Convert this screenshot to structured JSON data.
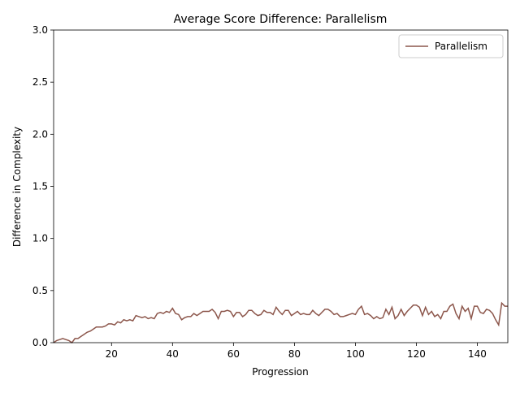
{
  "chart_data": {
    "type": "line",
    "title": "Average Score Difference: Parallelism",
    "x_label": "Progression",
    "y_label": "Difference in Complexity",
    "legend_position": "upper right",
    "x": [
      1,
      2,
      3,
      4,
      5,
      6,
      7,
      8,
      9,
      10,
      11,
      12,
      13,
      14,
      15,
      16,
      17,
      18,
      19,
      20,
      21,
      22,
      23,
      24,
      25,
      26,
      27,
      28,
      29,
      30,
      31,
      32,
      33,
      34,
      35,
      36,
      37,
      38,
      39,
      40,
      41,
      42,
      43,
      44,
      45,
      46,
      47,
      48,
      49,
      50,
      51,
      52,
      53,
      54,
      55,
      56,
      57,
      58,
      59,
      60,
      61,
      62,
      63,
      64,
      65,
      66,
      67,
      68,
      69,
      70,
      71,
      72,
      73,
      74,
      75,
      76,
      77,
      78,
      79,
      80,
      81,
      82,
      83,
      84,
      85,
      86,
      87,
      88,
      89,
      90,
      91,
      92,
      93,
      94,
      95,
      96,
      97,
      98,
      99,
      100,
      101,
      102,
      103,
      104,
      105,
      106,
      107,
      108,
      109,
      110,
      111,
      112,
      113,
      114,
      115,
      116,
      117,
      118,
      119,
      120,
      121,
      122,
      123,
      124,
      125,
      126,
      127,
      128,
      129,
      130,
      131,
      132,
      133,
      134,
      135,
      136,
      137,
      138,
      139,
      140,
      141,
      142,
      143,
      144,
      145,
      146,
      147,
      148,
      149,
      150
    ],
    "series": [
      {
        "name": "Parallelism",
        "color": "#8c564b",
        "values": [
          0.0,
          0.02,
          0.03,
          0.04,
          0.03,
          0.02,
          0.0,
          0.04,
          0.04,
          0.06,
          0.08,
          0.1,
          0.11,
          0.13,
          0.15,
          0.15,
          0.15,
          0.16,
          0.18,
          0.18,
          0.17,
          0.2,
          0.19,
          0.22,
          0.21,
          0.22,
          0.21,
          0.26,
          0.25,
          0.24,
          0.25,
          0.23,
          0.24,
          0.23,
          0.28,
          0.29,
          0.28,
          0.3,
          0.29,
          0.33,
          0.28,
          0.27,
          0.22,
          0.24,
          0.25,
          0.25,
          0.28,
          0.26,
          0.28,
          0.3,
          0.3,
          0.3,
          0.32,
          0.29,
          0.23,
          0.3,
          0.3,
          0.31,
          0.3,
          0.25,
          0.29,
          0.29,
          0.25,
          0.27,
          0.31,
          0.31,
          0.28,
          0.26,
          0.27,
          0.31,
          0.29,
          0.29,
          0.27,
          0.34,
          0.3,
          0.27,
          0.31,
          0.31,
          0.26,
          0.28,
          0.3,
          0.27,
          0.28,
          0.27,
          0.27,
          0.31,
          0.28,
          0.26,
          0.29,
          0.32,
          0.32,
          0.3,
          0.27,
          0.28,
          0.25,
          0.25,
          0.26,
          0.27,
          0.28,
          0.27,
          0.32,
          0.35,
          0.27,
          0.28,
          0.26,
          0.23,
          0.25,
          0.23,
          0.24,
          0.32,
          0.27,
          0.34,
          0.23,
          0.26,
          0.32,
          0.26,
          0.3,
          0.33,
          0.36,
          0.36,
          0.34,
          0.26,
          0.34,
          0.27,
          0.3,
          0.25,
          0.27,
          0.23,
          0.3,
          0.3,
          0.35,
          0.37,
          0.28,
          0.23,
          0.35,
          0.3,
          0.33,
          0.23,
          0.35,
          0.35,
          0.29,
          0.28,
          0.32,
          0.31,
          0.28,
          0.22,
          0.17,
          0.38,
          0.35,
          0.35
        ]
      }
    ],
    "xlim": [
      1,
      150
    ],
    "ylim": [
      0,
      3
    ],
    "xticks": [
      20,
      40,
      60,
      80,
      100,
      120,
      140
    ],
    "yticks": [
      {
        "value": 0,
        "label": "0.0"
      },
      {
        "value": 0.5,
        "label": "0.5"
      },
      {
        "value": 1,
        "label": "1.0"
      },
      {
        "value": 1.5,
        "label": "1.5"
      },
      {
        "value": 2,
        "label": "2.0"
      },
      {
        "value": 2.5,
        "label": "2.5"
      },
      {
        "value": 3,
        "label": "3.0"
      }
    ]
  }
}
